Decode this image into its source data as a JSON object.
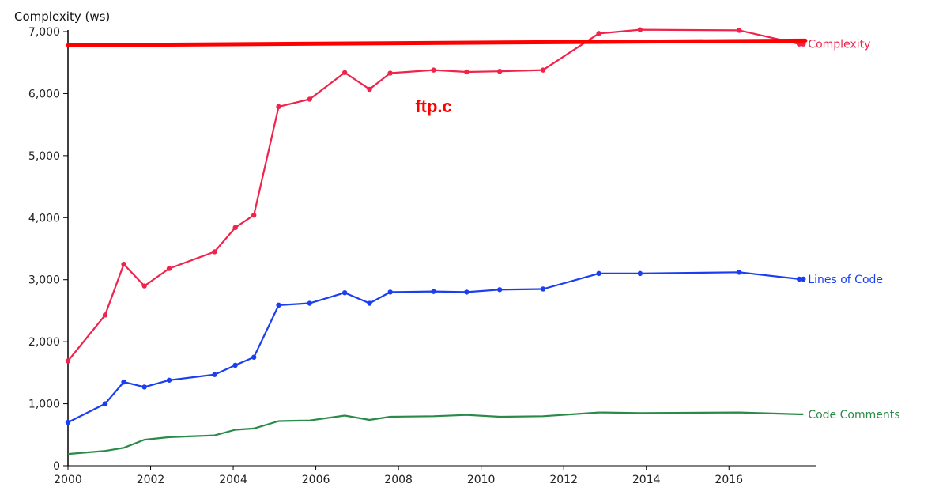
{
  "chart_data": {
    "type": "line",
    "ylabel": "Complexity (ws)",
    "xlim": [
      2000,
      2018.1
    ],
    "ylim": [
      0,
      7000
    ],
    "x_ticks": [
      2000,
      2002,
      2004,
      2006,
      2008,
      2010,
      2012,
      2014,
      2016
    ],
    "y_ticks": [
      0,
      1000,
      2000,
      3000,
      4000,
      5000,
      6000,
      7000
    ],
    "y_tick_labels": [
      "0",
      "1,000",
      "2,000",
      "3,000",
      "4,000",
      "5,000",
      "6,000",
      "7,000"
    ],
    "x": [
      2000.0,
      2000.9,
      2001.35,
      2001.85,
      2002.45,
      2003.55,
      2004.05,
      2004.5,
      2005.1,
      2005.85,
      2006.7,
      2007.3,
      2007.8,
      2008.85,
      2009.65,
      2010.45,
      2011.5,
      2012.85,
      2013.85,
      2016.25,
      2017.7,
      2017.8
    ],
    "series": [
      {
        "name": "Complexity",
        "color": "#f0234b",
        "markers": true,
        "values": [
          1690,
          2430,
          3250,
          2900,
          3180,
          3450,
          3840,
          4040,
          5790,
          5910,
          6340,
          6070,
          6330,
          6380,
          6350,
          6360,
          6380,
          6970,
          7030,
          7020,
          6800,
          6800
        ]
      },
      {
        "name": "Lines of Code",
        "color": "#1a3ef0",
        "markers": true,
        "values": [
          700,
          1000,
          1350,
          1270,
          1380,
          1470,
          1620,
          1750,
          2590,
          2620,
          2790,
          2620,
          2800,
          2810,
          2800,
          2840,
          2850,
          3100,
          3100,
          3120,
          3010,
          3010
        ]
      },
      {
        "name": "Code Comments",
        "color": "#2a8a48",
        "markers": false,
        "values": [
          190,
          240,
          290,
          420,
          460,
          490,
          580,
          600,
          720,
          730,
          810,
          740,
          790,
          800,
          820,
          790,
          800,
          860,
          850,
          860,
          830,
          830
        ]
      }
    ],
    "annotations": {
      "label": "ftp.c",
      "label_color": "#ff0000",
      "label_pos": [
        2008.85,
        5700
      ],
      "line_color": "#ff0000",
      "line_start": [
        2000.0,
        6780
      ],
      "line_end": [
        2017.85,
        6855
      ]
    }
  }
}
